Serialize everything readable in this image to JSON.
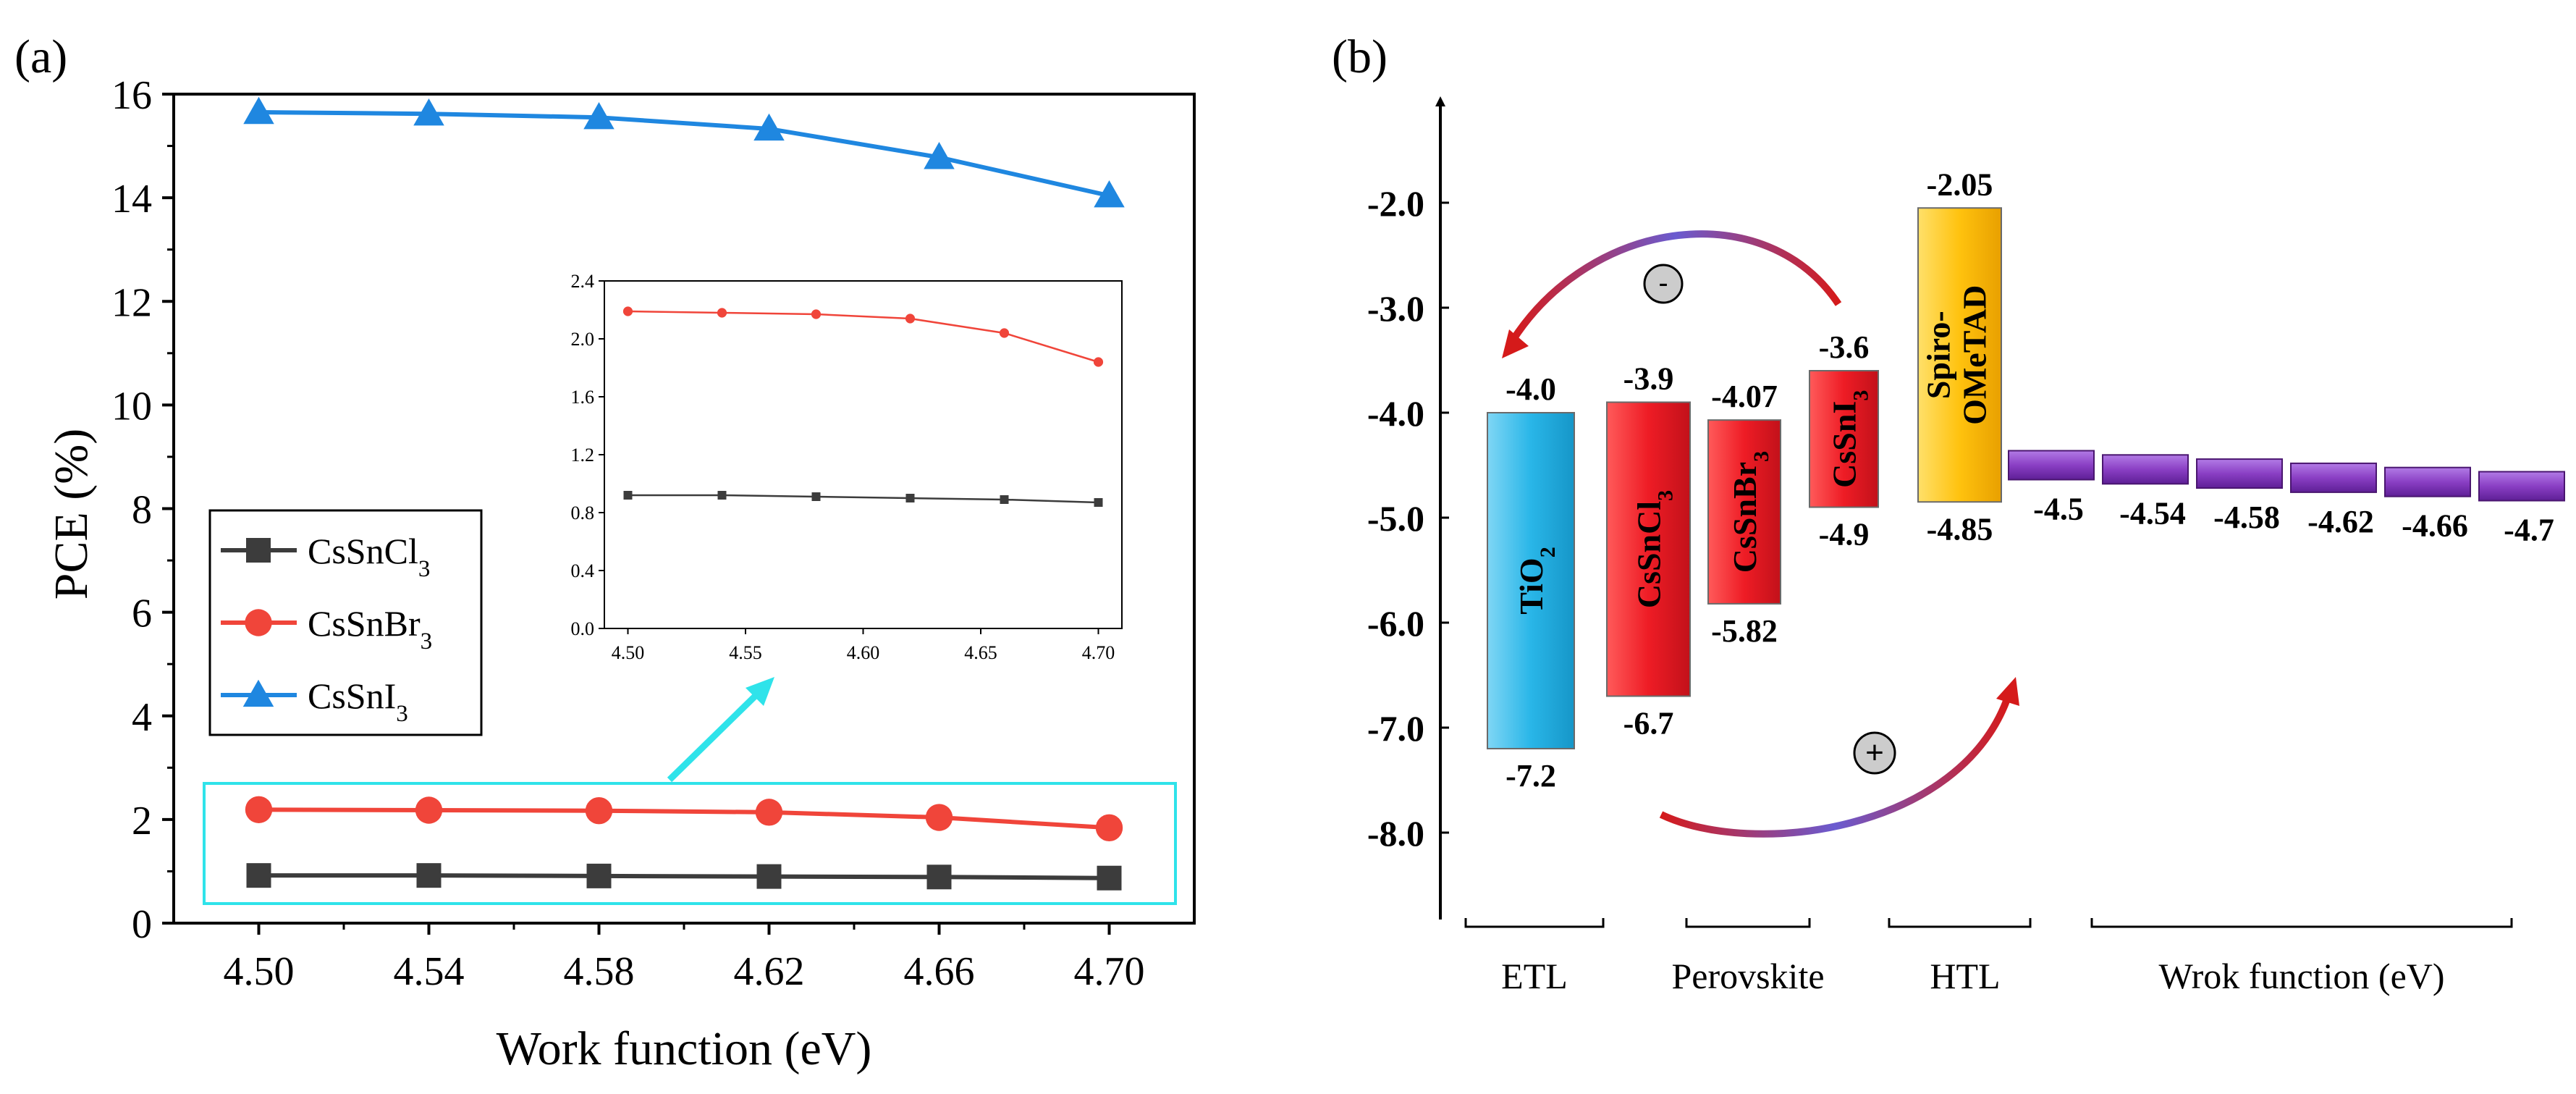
{
  "chart_data": [
    {
      "type": "line",
      "panel_label": "(a)",
      "xlabel": "Work function (eV)",
      "ylabel": "PCE (%)",
      "xlim": [
        4.48,
        4.72
      ],
      "ylim": [
        0,
        16
      ],
      "x": [
        4.5,
        4.54,
        4.58,
        4.62,
        4.66,
        4.7
      ],
      "x_ticks": [
        "4.50",
        "4.54",
        "4.58",
        "4.62",
        "4.66",
        "4.70"
      ],
      "y_ticks": [
        "0",
        "2",
        "4",
        "6",
        "8",
        "10",
        "12",
        "14",
        "16"
      ],
      "legend_location": "center-left",
      "series": [
        {
          "name": "CsSnCl",
          "sub": "3",
          "color": "#3c3c3c",
          "marker": "square",
          "values": [
            0.92,
            0.92,
            0.91,
            0.9,
            0.89,
            0.87
          ]
        },
        {
          "name": "CsSnBr",
          "sub": "3",
          "color": "#f0453a",
          "marker": "circle",
          "values": [
            2.19,
            2.18,
            2.17,
            2.14,
            2.04,
            1.84
          ]
        },
        {
          "name": "CsSnI",
          "sub": "3",
          "color": "#1f87e0",
          "marker": "triangle",
          "values": [
            15.65,
            15.62,
            15.55,
            15.33,
            14.78,
            14.04
          ]
        }
      ],
      "inset": {
        "type": "line",
        "xlim": [
          4.49,
          4.71
        ],
        "ylim": [
          0,
          2.4
        ],
        "x_ticks": [
          "4.50",
          "4.55",
          "4.60",
          "4.65",
          "4.70"
        ],
        "y_ticks": [
          "0.0",
          "0.4",
          "0.8",
          "1.2",
          "1.6",
          "2.0",
          "2.4"
        ],
        "series_names": [
          "CsSnCl",
          "CsSnBr"
        ]
      }
    },
    {
      "type": "energy-level-diagram",
      "panel_label": "(b)",
      "y_ticks": [
        "-2.0",
        "-3.0",
        "-4.0",
        "-5.0",
        "-6.0",
        "-7.0",
        "-8.0"
      ],
      "ylim": [
        -8.5,
        -1.0
      ],
      "layers": [
        {
          "name": "TiO",
          "sub": "2",
          "top": -4.0,
          "bottom": -7.2,
          "top_label": "-4.0",
          "bottom_label": "-7.2",
          "color": "#29b6e8",
          "group": "ETL"
        },
        {
          "name": "CsSnCl",
          "sub": "3",
          "top": -3.9,
          "bottom": -6.7,
          "top_label": "-3.9",
          "bottom_label": "-6.7",
          "color": "#ee1c25",
          "group": "Perovskite"
        },
        {
          "name": "CsSnBr",
          "sub": "3",
          "top": -4.07,
          "bottom": -5.82,
          "top_label": "-4.07",
          "bottom_label": "-5.82",
          "color": "#ee1c25",
          "group": "Perovskite"
        },
        {
          "name": "CsSnI",
          "sub": "3",
          "top": -3.6,
          "bottom": -4.9,
          "top_label": "-3.6",
          "bottom_label": "-4.9",
          "color": "#ee1c25",
          "group": "Perovskite"
        },
        {
          "name": "Spiro-",
          "name2": "OMeTAD",
          "top": -2.05,
          "bottom": -4.85,
          "top_label": "-2.05",
          "bottom_label": "-4.85",
          "color": "#ffc20e",
          "group": "HTL"
        }
      ],
      "work_functions": {
        "values": [
          -4.5,
          -4.54,
          -4.58,
          -4.62,
          -4.66,
          -4.7
        ],
        "labels": [
          "-4.5",
          "-4.54",
          "-4.58",
          "-4.62",
          "-4.66",
          "-4.7"
        ],
        "color": "#8a3fc4"
      },
      "charges": {
        "electron": "-",
        "hole": "+"
      },
      "groups": [
        "ETL",
        "Perovskite",
        "HTL",
        "Wrok function (eV)"
      ]
    }
  ]
}
